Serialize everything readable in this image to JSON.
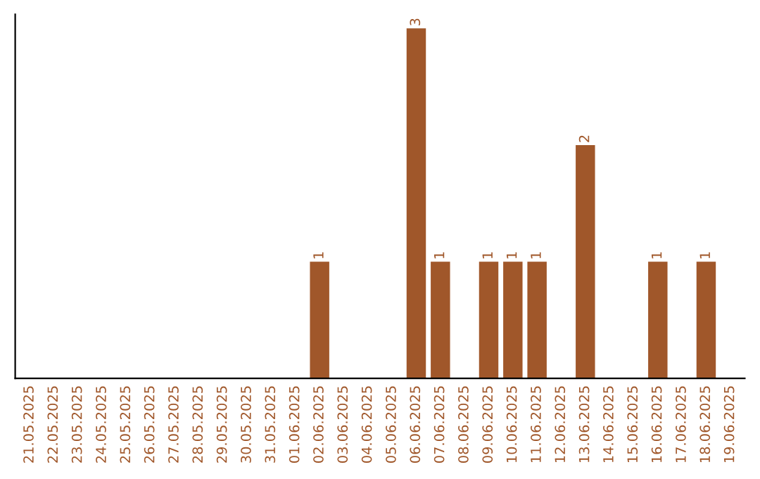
{
  "chart_data": {
    "type": "bar",
    "categories": [
      "21.05.2025",
      "22.05.2025",
      "23.05.2025",
      "24.05.2025",
      "25.05.2025",
      "26.05.2025",
      "27.05.2025",
      "28.05.2025",
      "29.05.2025",
      "30.05.2025",
      "31.05.2025",
      "01.06.2025",
      "02.06.2025",
      "03.06.2025",
      "04.06.2025",
      "05.06.2025",
      "06.06.2025",
      "07.06.2025",
      "08.06.2025",
      "09.06.2025",
      "10.06.2025",
      "11.06.2025",
      "12.06.2025",
      "13.06.2025",
      "14.06.2025",
      "15.06.2025",
      "16.06.2025",
      "17.06.2025",
      "18.06.2025",
      "19.06.2025"
    ],
    "values": [
      null,
      null,
      null,
      null,
      null,
      null,
      null,
      null,
      null,
      null,
      null,
      null,
      1,
      null,
      null,
      null,
      3,
      1,
      null,
      1,
      1,
      1,
      null,
      2,
      null,
      null,
      1,
      null,
      1,
      null
    ],
    "value_labels": [
      null,
      null,
      null,
      null,
      null,
      null,
      null,
      null,
      null,
      null,
      null,
      null,
      "1",
      null,
      null,
      null,
      "3",
      "1",
      null,
      "1",
      "1",
      "1",
      null,
      "2",
      null,
      null,
      "1",
      null,
      "1",
      null
    ],
    "color": "#a0572a",
    "tick_labels": "x",
    "grid": false,
    "legend": false
  }
}
